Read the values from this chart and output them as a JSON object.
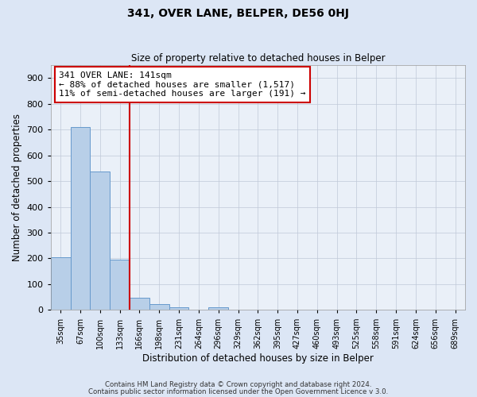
{
  "title": "341, OVER LANE, BELPER, DE56 0HJ",
  "subtitle": "Size of property relative to detached houses in Belper",
  "xlabel": "Distribution of detached houses by size in Belper",
  "ylabel": "Number of detached properties",
  "bins": [
    "35sqm",
    "67sqm",
    "100sqm",
    "133sqm",
    "166sqm",
    "198sqm",
    "231sqm",
    "264sqm",
    "296sqm",
    "329sqm",
    "362sqm",
    "395sqm",
    "427sqm",
    "460sqm",
    "493sqm",
    "525sqm",
    "558sqm",
    "591sqm",
    "624sqm",
    "656sqm",
    "689sqm"
  ],
  "values": [
    204,
    710,
    537,
    194,
    46,
    22,
    12,
    0,
    10,
    0,
    0,
    0,
    0,
    0,
    0,
    0,
    0,
    0,
    0,
    0,
    0
  ],
  "bar_color": "#b8cfe8",
  "bar_edge_color": "#6699cc",
  "vline_x": 3.5,
  "vline_color": "#cc0000",
  "annotation_text": "341 OVER LANE: 141sqm\n← 88% of detached houses are smaller (1,517)\n11% of semi-detached houses are larger (191) →",
  "annotation_box_color": "#ffffff",
  "annotation_box_edge_color": "#cc0000",
  "ylim": [
    0,
    950
  ],
  "yticks": [
    0,
    100,
    200,
    300,
    400,
    500,
    600,
    700,
    800,
    900
  ],
  "footnote1": "Contains HM Land Registry data © Crown copyright and database right 2024.",
  "footnote2": "Contains public sector information licensed under the Open Government Licence v 3.0.",
  "background_color": "#dce6f5",
  "plot_bg_color": "#eaf0f8"
}
